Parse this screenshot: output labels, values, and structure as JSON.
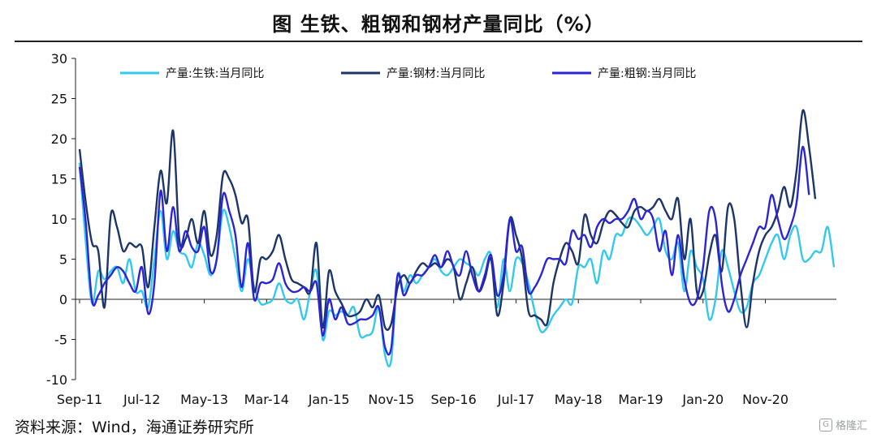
{
  "title": "图  生铁、粗钢和钢材产量同比（%）",
  "source": "资料来源：Wind，海通证券研究所",
  "watermark": {
    "text": "格隆汇",
    "icon": "G"
  },
  "chart_data": {
    "type": "line",
    "title": "图  生铁、粗钢和钢材产量同比（%）",
    "xlabel": "",
    "ylabel": "",
    "ylim": [
      -10,
      30
    ],
    "yticks": [
      -10,
      -5,
      0,
      5,
      10,
      15,
      20,
      25,
      30
    ],
    "x_start": "Sep-11",
    "x_end": "Jan-21",
    "x_tick_labels": [
      "Sep-11",
      "Jul-12",
      "May-13",
      "Mar-14",
      "Jan-15",
      "Nov-15",
      "Sep-16",
      "Jul-17",
      "May-18",
      "Mar-19",
      "Jan-20",
      "Nov-20"
    ],
    "grid": false,
    "legend_position": "top",
    "series": [
      {
        "name": "产量:生铁:当月同比",
        "color": "#33c9ee",
        "values": [
          17,
          7,
          -0.5,
          3.5,
          2.5,
          3.5,
          4,
          2,
          5,
          1,
          1,
          -1,
          5,
          11,
          5,
          8.5,
          6,
          5.5,
          4,
          7,
          5.5,
          3,
          5,
          11,
          9,
          5,
          1,
          5,
          1.5,
          -0.5,
          -0.5,
          0,
          2,
          0,
          -0.5,
          0,
          -2.5,
          1,
          3.5,
          -5,
          -1.5,
          -2,
          -1.5,
          -2,
          -1,
          -4.5,
          -4.5,
          -4,
          -1,
          -7,
          -7.5,
          3,
          1,
          3,
          2,
          3,
          4,
          5,
          3.5,
          3,
          4,
          5,
          4.5,
          4,
          3,
          5,
          5.5,
          -1,
          5,
          1,
          5,
          4.5,
          2,
          -1.5,
          -4,
          -3.5,
          -2,
          -1,
          0,
          -0.5,
          4,
          4,
          5,
          2,
          6,
          5,
          8,
          8,
          10,
          10,
          9,
          8,
          9,
          10,
          6,
          5,
          7,
          1,
          6,
          4,
          2.5,
          -2.5,
          0,
          6,
          4,
          1,
          -1.5,
          -1,
          2,
          3,
          5,
          7,
          8,
          5,
          8,
          9,
          5,
          5,
          6,
          6,
          9,
          4
        ]
      },
      {
        "name": "产量:钢材:当月同比",
        "color": "#1b3568",
        "values": [
          18.7,
          12,
          7,
          6,
          -1,
          10.5,
          9,
          6,
          7,
          6.5,
          6.5,
          1.5,
          9,
          16,
          12,
          21,
          7.5,
          7.5,
          10,
          7,
          11,
          5.5,
          8,
          15.5,
          15,
          13,
          9.5,
          10,
          1,
          5,
          5,
          6,
          8,
          5,
          2.5,
          2,
          1.5,
          1,
          7,
          -3.5,
          3.5,
          1,
          -0.5,
          -2,
          -2,
          -1.5,
          0,
          -1,
          0.5,
          -3.5,
          -3,
          1.5,
          3,
          2,
          3.5,
          4.5,
          4,
          4.5,
          4,
          5,
          4,
          0,
          2,
          4,
          1,
          2.5,
          5,
          -2,
          2,
          10,
          8,
          5,
          -1.5,
          -2,
          -2.5,
          -3,
          2,
          5,
          7,
          6,
          4.5,
          10.5,
          8,
          7,
          9.5,
          11,
          10.5,
          9.5,
          9,
          11,
          11.5,
          11,
          11.5,
          12.5,
          11,
          10,
          12.5,
          5,
          10,
          1,
          1,
          5.5,
          8,
          3.5,
          11.5,
          10,
          2,
          -3.5,
          2,
          6,
          8,
          9,
          11,
          14,
          11.5,
          16,
          23.5,
          19,
          12.5
        ]
      },
      {
        "name": "产量:粗钢:当月同比",
        "color": "#2b24d6",
        "values": [
          16.5,
          9.5,
          -0.2,
          0.5,
          2,
          3,
          4,
          3.5,
          2,
          1,
          4,
          -1.8,
          2,
          13.5,
          6,
          11.5,
          6,
          8.5,
          6.5,
          6,
          9,
          3.5,
          5,
          13,
          11,
          8,
          1.5,
          7,
          0,
          2,
          2,
          2.5,
          4.5,
          2,
          1,
          1,
          1.5,
          1,
          2,
          -4.5,
          0,
          -2.5,
          -1,
          -3,
          -3,
          -2.5,
          -2.5,
          -2,
          -1,
          -6,
          -6,
          3,
          0.5,
          2,
          3,
          3,
          4,
          5.5,
          4,
          6,
          4,
          3,
          6,
          3,
          1,
          3,
          5.5,
          0.5,
          3,
          10,
          6,
          6.5,
          1,
          1.5,
          3,
          5,
          5,
          5,
          4.5,
          8.5,
          7.5,
          8,
          6.5,
          9,
          10,
          9.5,
          10,
          10,
          11,
          12.5,
          10,
          11,
          10,
          6,
          8.5,
          3,
          8,
          2.5,
          -0.5,
          0,
          4,
          11,
          10,
          2,
          -1.5,
          0,
          3,
          5,
          7,
          9,
          9,
          13,
          10,
          7.5,
          9,
          12,
          19,
          13
        ]
      }
    ]
  }
}
